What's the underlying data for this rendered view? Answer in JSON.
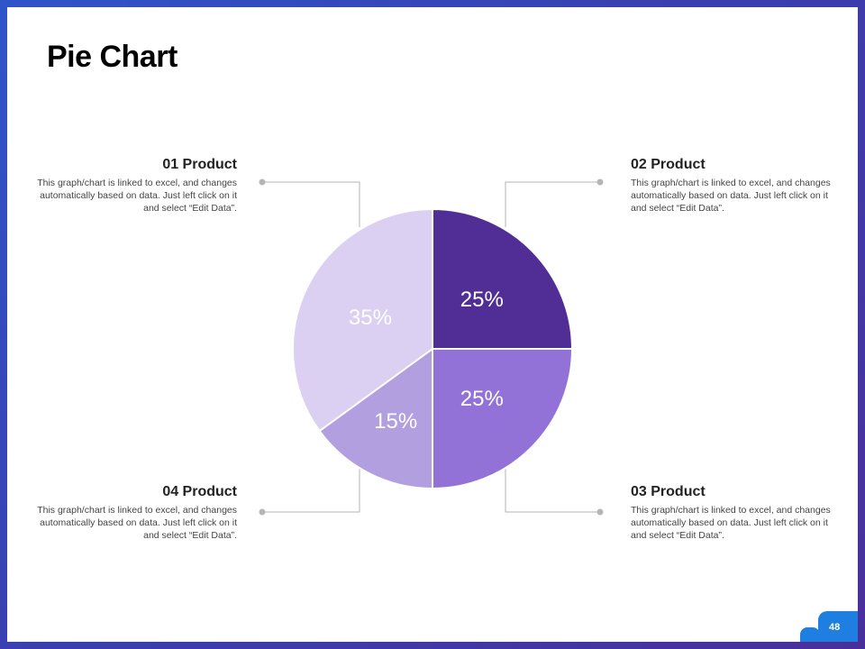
{
  "slide": {
    "title": "Pie Chart",
    "page_number": "48"
  },
  "products": [
    {
      "heading": "01 Product",
      "description": "This graph/chart is linked to excel, and changes automatically based on data. Just left click on it and select “Edit Data”."
    },
    {
      "heading": "02 Product",
      "description": "This graph/chart is linked to excel, and changes automatically based on data. Just left click on it and select “Edit Data”."
    },
    {
      "heading": "03 Product",
      "description": "This graph/chart is linked to excel, and changes automatically based on data. Just left click on it and select “Edit Data”."
    },
    {
      "heading": "04 Product",
      "description": "This graph/chart is linked to excel, and changes automatically based on data. Just left click on it and select “Edit Data”."
    }
  ],
  "chart_data": {
    "type": "pie",
    "title": "Pie Chart",
    "start": "12 o'clock, clockwise",
    "slices": [
      {
        "name": "02 Product",
        "value": 25,
        "label": "25%",
        "color": "#512e96"
      },
      {
        "name": "03 Product",
        "value": 25,
        "label": "25%",
        "color": "#9272d6"
      },
      {
        "name": "04 Product",
        "value": 15,
        "label": "15%",
        "color": "#b19fe0"
      },
      {
        "name": "01 Product",
        "value": 35,
        "label": "35%",
        "color": "#dbd0f1"
      }
    ]
  },
  "colors": {
    "connector": "#b5b5b5",
    "badge": "#1e7fe0"
  }
}
